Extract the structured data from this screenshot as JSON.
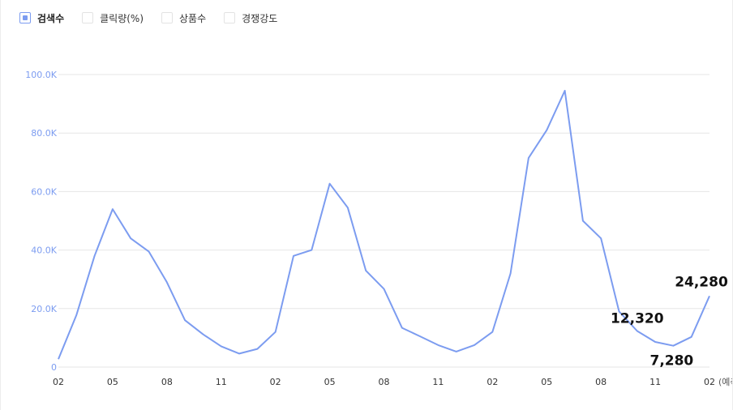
{
  "legend": [
    {
      "label": "검색수",
      "active": true
    },
    {
      "label": "클릭량(%)",
      "active": false
    },
    {
      "label": "상품수",
      "active": false
    },
    {
      "label": "경쟁강도",
      "active": false
    }
  ],
  "colors": {
    "line": "#7c9cf0",
    "ytick": "#7c9cf0",
    "xtick": "#333333",
    "grid": "#e6e6e6",
    "annotation": "#111111"
  },
  "chart_data": {
    "type": "line",
    "title": "",
    "xlabel": "",
    "ylabel": "",
    "ylim": [
      0,
      100000
    ],
    "yticks": [
      0,
      20000,
      40000,
      60000,
      80000,
      100000
    ],
    "ytick_labels": [
      "0",
      "20.0K",
      "40.0K",
      "60.0K",
      "80.0K",
      "100.0K"
    ],
    "grid": true,
    "x_tick_labels": [
      "02",
      "05",
      "08",
      "11",
      "02",
      "05",
      "08",
      "11",
      "02",
      "05",
      "08",
      "11",
      "02"
    ],
    "x_tick_suffix": "(예측)",
    "series": [
      {
        "values": [
          2700,
          17800,
          38000,
          54000,
          44000,
          39500,
          29000,
          16000,
          11200,
          7100,
          4600,
          6200,
          12000,
          38000,
          40000,
          62700,
          54500,
          33000,
          26700,
          13400,
          10500,
          7500,
          5300,
          7500,
          12000,
          32000,
          71500,
          81000,
          94500,
          50000,
          44000,
          19000,
          12320,
          8600,
          7280,
          10300,
          24280
        ]
      }
    ],
    "annotations": [
      {
        "index": 32,
        "label": "12,320"
      },
      {
        "index": 34,
        "label": "7,280"
      },
      {
        "index": 36,
        "label": "24,280"
      }
    ]
  }
}
